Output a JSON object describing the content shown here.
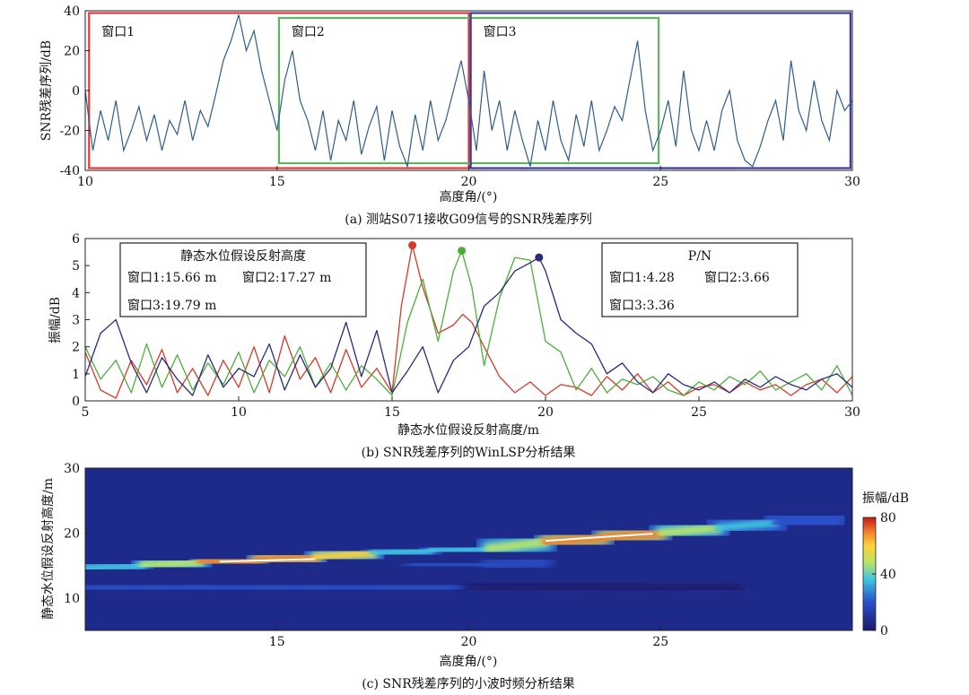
{
  "chart_data": [
    {
      "type": "line",
      "caption": "(a) 测站S071接收G09信号的SNR残差序列",
      "xlabel": "高度角/(°)",
      "ylabel": "SNR残差序列/dB",
      "xlim": [
        10,
        30
      ],
      "ylim": [
        -40,
        40
      ],
      "xticks": [
        10,
        15,
        20,
        25,
        30
      ],
      "yticks": [
        -40,
        -20,
        0,
        20,
        40
      ],
      "windows": [
        {
          "label": "窗口1",
          "x": [
            10.1,
            20.0
          ],
          "color": "#e03a3a"
        },
        {
          "label": "窗口2",
          "x": [
            15.05,
            24.95
          ],
          "color": "#5cb85c"
        },
        {
          "label": "窗口3",
          "x": [
            20.05,
            29.95
          ],
          "color": "#3a3a9a"
        }
      ],
      "series": [
        {
          "color": "#2f5d8c",
          "x": [
            10.0,
            10.2,
            10.4,
            10.6,
            10.8,
            11.0,
            11.2,
            11.4,
            11.6,
            11.8,
            12.0,
            12.2,
            12.4,
            12.6,
            12.8,
            13.0,
            13.2,
            13.4,
            13.6,
            13.8,
            14.0,
            14.2,
            14.4,
            14.6,
            14.8,
            15.0,
            15.2,
            15.4,
            15.6,
            15.8,
            16.0,
            16.2,
            16.4,
            16.6,
            16.8,
            17.0,
            17.2,
            17.4,
            17.6,
            17.8,
            18.0,
            18.2,
            18.4,
            18.6,
            18.8,
            19.0,
            19.2,
            19.4,
            19.6,
            19.8,
            20.0,
            20.2,
            20.4,
            20.6,
            20.8,
            21.0,
            21.2,
            21.4,
            21.6,
            21.8,
            22.0,
            22.2,
            22.4,
            22.6,
            22.8,
            23.0,
            23.2,
            23.4,
            23.6,
            23.8,
            24.0,
            24.2,
            24.4,
            24.6,
            24.8,
            25.0,
            25.2,
            25.4,
            25.6,
            25.8,
            26.0,
            26.2,
            26.4,
            26.6,
            26.8,
            27.0,
            27.2,
            27.4,
            27.6,
            27.8,
            28.0,
            28.2,
            28.4,
            28.6,
            28.8,
            29.0,
            29.2,
            29.4,
            29.6,
            29.8,
            30.0
          ],
          "values": [
            0,
            -30,
            -10,
            -25,
            -5,
            -30,
            -20,
            -8,
            -25,
            -12,
            -30,
            -15,
            -22,
            -5,
            -25,
            -10,
            -18,
            -2,
            15,
            25,
            38,
            20,
            30,
            10,
            -5,
            -20,
            5,
            20,
            -5,
            -15,
            -30,
            -10,
            -35,
            -15,
            -25,
            -5,
            -32,
            -18,
            -8,
            -35,
            -10,
            -28,
            -38,
            -12,
            -30,
            -5,
            -25,
            -15,
            0,
            15,
            -5,
            -30,
            10,
            -20,
            -5,
            -30,
            -10,
            -25,
            -38,
            -15,
            -30,
            -5,
            -25,
            -35,
            -12,
            -28,
            -5,
            -30,
            -20,
            -8,
            -15,
            5,
            25,
            -10,
            -30,
            -20,
            -5,
            -28,
            10,
            -20,
            -30,
            -15,
            -30,
            -10,
            0,
            -25,
            -35,
            -38,
            -28,
            -15,
            -5,
            -25,
            15,
            -10,
            -20,
            5,
            -15,
            -25,
            0,
            -10,
            -5
          ]
        }
      ]
    },
    {
      "type": "line",
      "caption": "(b) SNR残差序列的WinLSP分析结果",
      "xlabel": "静态水位假设反射高度/m",
      "ylabel": "振幅/dB",
      "xlim": [
        5,
        30
      ],
      "ylim": [
        0,
        6
      ],
      "xticks": [
        5,
        10,
        15,
        20,
        25,
        30
      ],
      "yticks": [
        0,
        1,
        2,
        3,
        4,
        5,
        6
      ],
      "series": [
        {
          "color": "#d43a2a",
          "x": [
            5,
            5.5,
            6,
            6.5,
            7,
            7.5,
            8,
            8.5,
            9,
            9.5,
            10,
            10.5,
            11,
            11.5,
            12,
            12.5,
            13,
            13.5,
            14,
            14.5,
            15,
            15.3,
            15.66,
            16,
            16.5,
            17,
            17.3,
            17.6,
            18,
            18.5,
            19,
            19.5,
            20,
            20.5,
            21,
            21.5,
            22,
            22.5,
            23,
            23.5,
            24,
            24.5,
            25,
            25.5,
            26,
            26.5,
            27,
            27.5,
            28,
            28.5,
            29,
            29.5,
            30
          ],
          "values": [
            1.8,
            0.4,
            0.1,
            1.5,
            0.6,
            1.9,
            0.3,
            1.2,
            0.2,
            1.5,
            0.5,
            2.0,
            0.3,
            2.4,
            0.8,
            1.6,
            0.3,
            1.9,
            0.5,
            1.2,
            0.3,
            3.5,
            5.75,
            4.2,
            2.5,
            2.8,
            3.2,
            2.9,
            2.0,
            0.9,
            0.3,
            0.7,
            0.2,
            0.6,
            0.5,
            0.2,
            0.9,
            0.4,
            1.0,
            0.3,
            0.7,
            0.2,
            0.5,
            0.6,
            0.3,
            0.7,
            0.4,
            0.6,
            0.2,
            0.6,
            0.8,
            0.3,
            0.9
          ]
        },
        {
          "color": "#4caf3a",
          "x": [
            5,
            5.5,
            6,
            6.5,
            7,
            7.5,
            8,
            8.5,
            9,
            9.5,
            10,
            10.5,
            11,
            11.5,
            12,
            12.5,
            13,
            13.5,
            14,
            14.5,
            15,
            15.5,
            16,
            16.5,
            17,
            17.27,
            17.6,
            18,
            18.5,
            19,
            19.5,
            20,
            20.5,
            21,
            21.5,
            22,
            22.5,
            23,
            23.5,
            24,
            24.5,
            25,
            25.5,
            26,
            26.5,
            27,
            27.5,
            28,
            28.5,
            29,
            29.5,
            30
          ],
          "values": [
            2.0,
            0.8,
            1.5,
            0.3,
            2.1,
            0.5,
            1.7,
            0.4,
            1.4,
            0.6,
            1.8,
            0.3,
            1.5,
            0.9,
            2.0,
            0.5,
            1.4,
            0.4,
            1.3,
            0.8,
            0.2,
            2.9,
            4.5,
            2.2,
            4.8,
            5.55,
            4.2,
            1.3,
            3.8,
            5.3,
            5.2,
            2.2,
            1.8,
            0.4,
            1.2,
            0.3,
            0.8,
            0.6,
            0.9,
            0.4,
            0.2,
            0.7,
            0.4,
            0.9,
            0.6,
            1.1,
            0.4,
            0.7,
            1.0,
            0.4,
            1.3,
            0.2
          ]
        },
        {
          "color": "#2a2a7a",
          "x": [
            5,
            5.5,
            6,
            6.5,
            7,
            7.5,
            8,
            8.5,
            9,
            9.5,
            10,
            10.5,
            11,
            11.5,
            12,
            12.5,
            13,
            13.5,
            14,
            14.5,
            15,
            15.5,
            16,
            16.5,
            17,
            17.5,
            18,
            18.5,
            19,
            19.5,
            19.79,
            20,
            20.5,
            21,
            21.5,
            22,
            22.5,
            23,
            23.5,
            24,
            24.5,
            25,
            25.5,
            26,
            26.5,
            27,
            27.5,
            28,
            28.5,
            29,
            29.5,
            30
          ],
          "values": [
            0.9,
            2.5,
            3.0,
            1.4,
            0.3,
            1.6,
            0.8,
            0.2,
            1.7,
            0.5,
            1.2,
            0.9,
            2.1,
            0.4,
            1.7,
            0.5,
            1.2,
            2.9,
            0.9,
            2.6,
            0.3,
            1.1,
            2.0,
            0.3,
            1.5,
            2.0,
            3.5,
            4.0,
            4.8,
            5.1,
            5.3,
            4.8,
            3.0,
            2.5,
            2.1,
            1.0,
            1.4,
            0.7,
            0.3,
            1.0,
            0.6,
            0.4,
            0.7,
            0.3,
            0.8,
            0.5,
            0.9,
            0.6,
            0.4,
            0.8,
            1.0,
            0.5
          ]
        }
      ],
      "peaks": [
        {
          "x": 15.66,
          "y": 5.75,
          "color": "#d43a2a"
        },
        {
          "x": 17.27,
          "y": 5.55,
          "color": "#4caf3a"
        },
        {
          "x": 19.79,
          "y": 5.3,
          "color": "#2a2a7a"
        }
      ],
      "annotations": {
        "box1": {
          "title": "静态水位假设反射高度",
          "line1a": "窗口1:15.66 m",
          "line1b": "窗口2:17.27 m",
          "line2": "窗口3:19.79 m"
        },
        "box2": {
          "title": "P/N",
          "line1a": "窗口1:4.28",
          "line1b": "窗口2:3.66",
          "line2": "窗口3:3.36"
        }
      }
    },
    {
      "type": "heatmap",
      "caption": "(c) SNR残差序列的小波时频分析结果",
      "xlabel": "高度角/(°)",
      "ylabel": "静态水位假设反射高度/m",
      "xlim": [
        10,
        30
      ],
      "ylim": [
        5,
        30
      ],
      "xticks": [
        15,
        20,
        25
      ],
      "yticks": [
        10,
        20,
        30
      ],
      "colorbar": {
        "label": "振幅/dB",
        "ticks": [
          0,
          40,
          80
        ],
        "range": [
          0,
          80
        ]
      },
      "ridge": [
        {
          "x": 10.0,
          "y": 14.6,
          "amp": 30
        },
        {
          "x": 11.5,
          "y": 15.0,
          "amp": 45
        },
        {
          "x": 13.0,
          "y": 15.5,
          "amp": 70
        },
        {
          "x": 14.5,
          "y": 15.8,
          "amp": 80
        },
        {
          "x": 16.0,
          "y": 16.3,
          "amp": 72
        },
        {
          "x": 17.5,
          "y": 16.9,
          "amp": 50
        },
        {
          "x": 19.0,
          "y": 17.3,
          "amp": 38
        },
        {
          "x": 20.5,
          "y": 17.6,
          "amp": 36
        },
        {
          "x": 22.0,
          "y": 18.6,
          "amp": 72
        },
        {
          "x": 23.5,
          "y": 19.3,
          "amp": 80
        },
        {
          "x": 25.0,
          "y": 20.0,
          "amp": 74
        },
        {
          "x": 26.5,
          "y": 20.8,
          "amp": 45
        },
        {
          "x": 28.0,
          "y": 21.6,
          "amp": 35
        },
        {
          "x": 29.5,
          "y": 22.3,
          "amp": 28
        }
      ],
      "secondary": [
        {
          "x": 18.5,
          "y": 15.2,
          "amp": 36
        },
        {
          "x": 20.5,
          "y": 15.0,
          "amp": 34
        },
        {
          "x": 22.0,
          "y": 15.6,
          "amp": 26
        }
      ],
      "low_band": [
        {
          "x": 10.0,
          "y": 11.5,
          "amp": 28
        },
        {
          "x": 13.0,
          "y": 11.8,
          "amp": 22
        },
        {
          "x": 20.0,
          "y": 11.5,
          "amp": 18
        },
        {
          "x": 27.0,
          "y": 12.0,
          "amp": 16
        }
      ],
      "white_lines": [
        {
          "x1": 13.5,
          "y1": 15.6,
          "x2": 16.0,
          "y2": 16.0
        },
        {
          "x1": 22.0,
          "y1": 18.8,
          "x2": 24.8,
          "y2": 19.9
        }
      ]
    }
  ]
}
